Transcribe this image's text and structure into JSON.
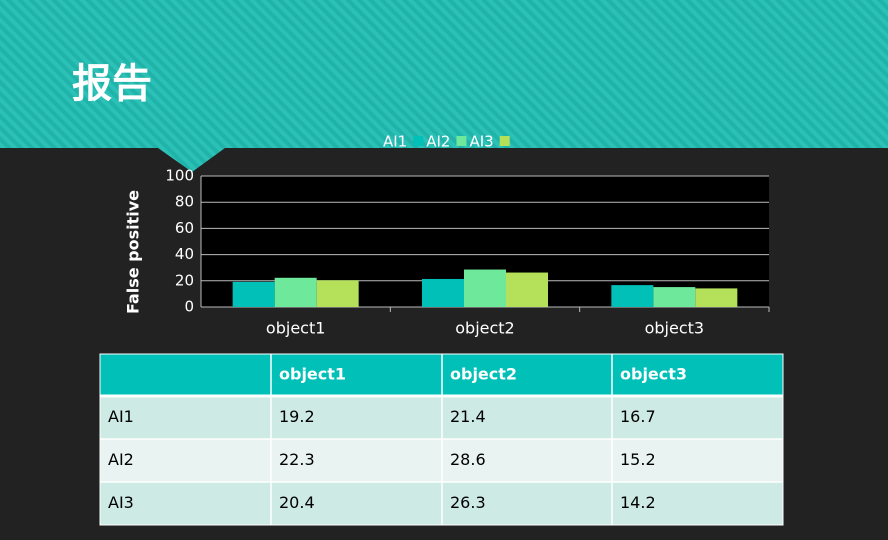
{
  "header": {
    "title": "报告"
  },
  "chart_data": {
    "type": "bar",
    "ylabel": "False positive",
    "categories": [
      "object1",
      "object2",
      "object3"
    ],
    "series": [
      {
        "name": "AI1",
        "color": "#00c0b8",
        "values": [
          19.2,
          21.4,
          16.7
        ]
      },
      {
        "name": "AI2",
        "color": "#6ee89a",
        "values": [
          22.3,
          28.6,
          15.2
        ]
      },
      {
        "name": "AI3",
        "color": "#b4e05a",
        "values": [
          20.4,
          26.3,
          14.2
        ]
      }
    ],
    "ylim": [
      0,
      100
    ],
    "yticks": [
      0,
      20,
      40,
      60,
      80,
      100
    ],
    "grid": true,
    "legend": "top"
  }
}
